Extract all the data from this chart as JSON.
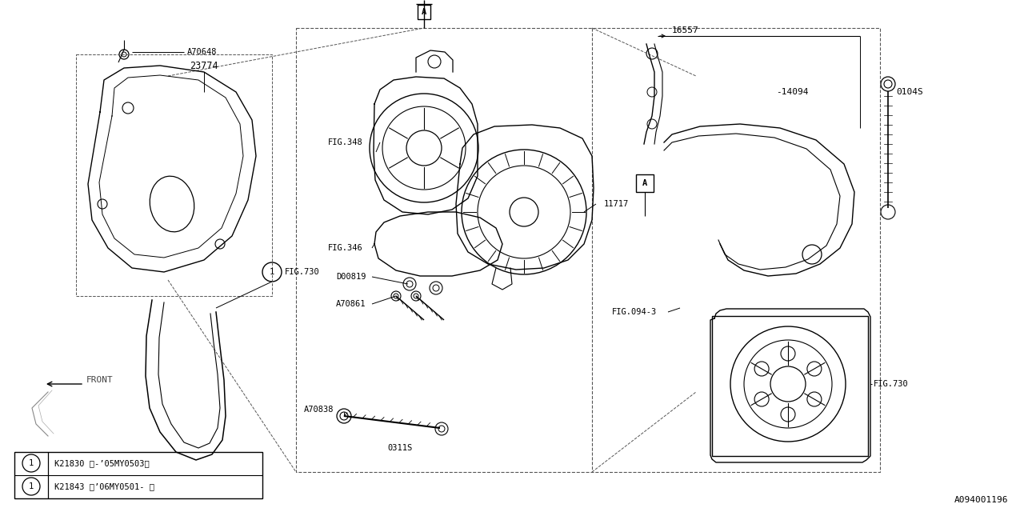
{
  "bg_color": "#ffffff",
  "line_color": "#000000",
  "fig_id": "A094001196",
  "legend_rows": [
    "K21830 〈-’05MY0503〉",
    "K21843 〈’06MY0501- 〉"
  ]
}
